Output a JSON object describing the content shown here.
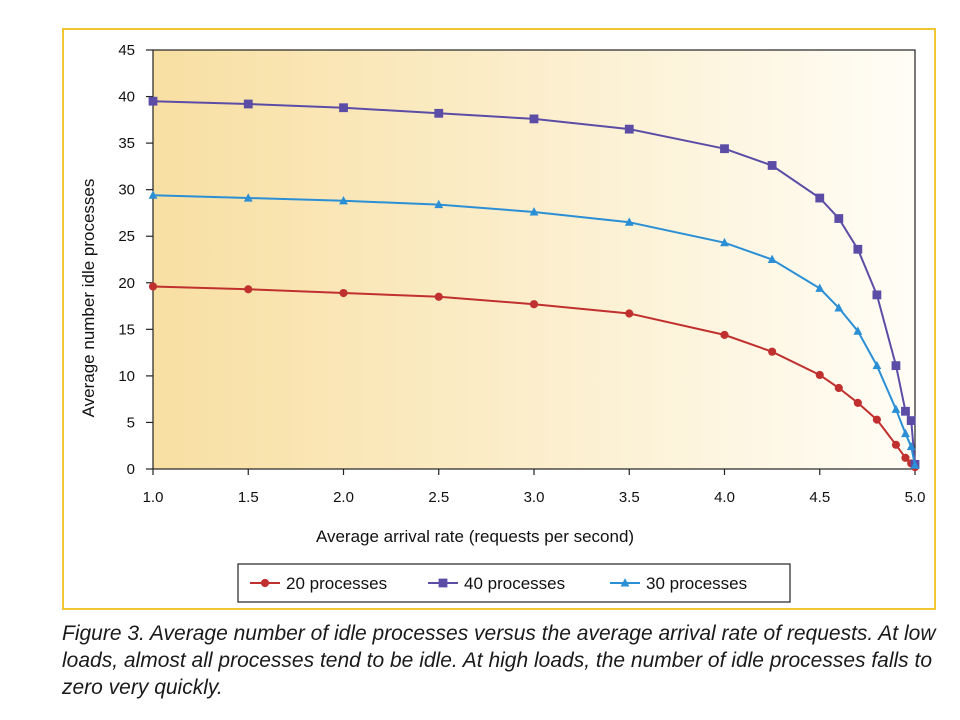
{
  "chart_data": {
    "type": "line",
    "title": "",
    "xlabel": "Average arrival rate (requests per second)",
    "ylabel": "Average number idle processes",
    "xlim": [
      1.0,
      5.0
    ],
    "ylim": [
      0,
      45
    ],
    "xticks": [
      "1.0",
      "1.5",
      "2.0",
      "2.5",
      "3.0",
      "3.5",
      "4.0",
      "4.5",
      "5.0"
    ],
    "yticks": [
      "0",
      "5",
      "10",
      "15",
      "20",
      "25",
      "30",
      "35",
      "40",
      "45"
    ],
    "grid": false,
    "legend_position": "bottom",
    "series": [
      {
        "name": "20 processes",
        "color": "#c0302e",
        "marker": "circle",
        "x": [
          1.0,
          1.5,
          2.0,
          2.5,
          3.0,
          3.5,
          4.0,
          4.25,
          4.5,
          4.6,
          4.7,
          4.8,
          4.9,
          4.95,
          4.98,
          5.0
        ],
        "y": [
          19.6,
          19.3,
          18.9,
          18.5,
          17.7,
          16.7,
          14.4,
          12.6,
          10.1,
          8.7,
          7.1,
          5.3,
          2.6,
          1.2,
          0.6,
          0.2
        ]
      },
      {
        "name": "40 processes",
        "color": "#5b4da6",
        "marker": "square",
        "x": [
          1.0,
          1.5,
          2.0,
          2.5,
          3.0,
          3.5,
          4.0,
          4.25,
          4.5,
          4.6,
          4.7,
          4.8,
          4.9,
          4.95,
          4.98,
          5.0
        ],
        "y": [
          39.5,
          39.2,
          38.8,
          38.2,
          37.6,
          36.5,
          34.4,
          32.6,
          29.1,
          26.9,
          23.6,
          18.7,
          11.1,
          6.2,
          5.2,
          0.5
        ]
      },
      {
        "name": "30 processes",
        "color": "#2b8fd6",
        "marker": "triangle",
        "x": [
          1.0,
          1.5,
          2.0,
          2.5,
          3.0,
          3.5,
          4.0,
          4.25,
          4.5,
          4.6,
          4.7,
          4.8,
          4.9,
          4.95,
          4.98,
          5.0
        ],
        "y": [
          29.4,
          29.1,
          28.8,
          28.4,
          27.6,
          26.5,
          24.3,
          22.5,
          19.4,
          17.3,
          14.8,
          11.1,
          6.4,
          3.8,
          2.4,
          0.4
        ]
      }
    ]
  },
  "colors": {
    "frame_border": "#f2c533",
    "plot_gradient_left": "#f8dfa2",
    "plot_gradient_right": "#fffdf6"
  },
  "caption": "Figure 3. Average number of idle processes versus the average arrival rate of requests. At low loads, almost all processes tend to be idle. At high loads, the number of idle processes falls to zero very quickly."
}
